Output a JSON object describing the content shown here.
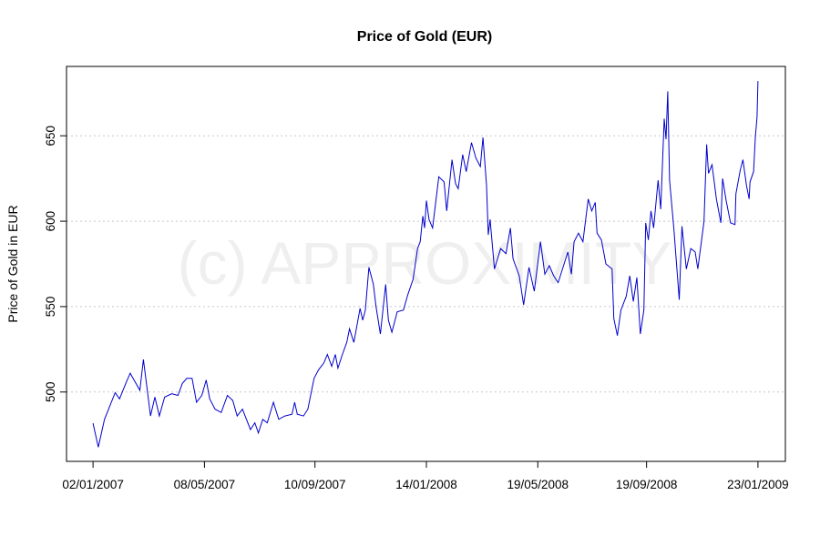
{
  "chart_data": {
    "type": "line",
    "title": "Price of Gold (EUR)",
    "xlabel": "",
    "ylabel": "Price of Gold in EUR",
    "watermark": "(c) APPROXIMITY",
    "xlim": [
      "2006-12-03",
      "2009-02-23"
    ],
    "ylim": [
      459.4,
      690.6
    ],
    "x_ticks": [
      "2007-01-02",
      "2007-05-08",
      "2007-09-10",
      "2008-01-14",
      "2008-05-19",
      "2008-09-19",
      "2009-01-23"
    ],
    "x_tick_labels": [
      "02/01/2007",
      "08/05/2007",
      "10/09/2007",
      "14/01/2008",
      "19/05/2008",
      "19/09/2008",
      "23/01/2009"
    ],
    "y_ticks": [
      500,
      550,
      600,
      650
    ],
    "y_tick_labels": [
      "500",
      "550",
      "600",
      "650"
    ],
    "grid": "horizontal dotted",
    "line_color": "#0000cc",
    "gridline_color": "#c8c8c8",
    "series": [
      {
        "x": [
          "2007-01-02",
          "2007-01-08",
          "2007-01-15",
          "2007-01-27",
          "2007-02-01",
          "2007-02-08",
          "2007-02-13",
          "2007-02-24",
          "2007-02-28",
          "2007-03-08",
          "2007-03-13",
          "2007-03-18",
          "2007-03-24",
          "2007-04-01",
          "2007-04-08",
          "2007-04-13",
          "2007-04-18",
          "2007-04-24",
          "2007-04-29",
          "2007-05-05",
          "2007-05-10",
          "2007-05-14",
          "2007-05-20",
          "2007-05-27",
          "2007-06-03",
          "2007-06-09",
          "2007-06-14",
          "2007-06-20",
          "2007-06-29",
          "2007-07-04",
          "2007-07-08",
          "2007-07-13",
          "2007-07-18",
          "2007-07-25",
          "2007-07-31",
          "2007-08-07",
          "2007-08-15",
          "2007-08-18",
          "2007-08-21",
          "2007-08-28",
          "2007-09-02",
          "2007-09-09",
          "2007-09-14",
          "2007-09-20",
          "2007-09-24",
          "2007-09-29",
          "2007-10-03",
          "2007-10-06",
          "2007-10-11",
          "2007-10-16",
          "2007-10-19",
          "2007-10-24",
          "2007-10-31",
          "2007-11-03",
          "2007-11-06",
          "2007-11-10",
          "2007-11-15",
          "2007-11-18",
          "2007-11-23",
          "2007-11-29",
          "2007-12-02",
          "2007-12-06",
          "2007-12-12",
          "2007-12-19",
          "2007-12-24",
          "2007-12-30",
          "2008-01-04",
          "2008-01-07",
          "2008-01-10",
          "2008-01-12",
          "2008-01-14",
          "2008-01-17",
          "2008-01-21",
          "2008-01-28",
          "2008-02-03",
          "2008-02-06",
          "2008-02-12",
          "2008-02-16",
          "2008-02-19",
          "2008-02-24",
          "2008-02-28",
          "2008-03-05",
          "2008-03-10",
          "2008-03-15",
          "2008-03-18",
          "2008-03-22",
          "2008-03-24",
          "2008-03-26",
          "2008-03-31",
          "2008-04-07",
          "2008-04-13",
          "2008-04-18",
          "2008-04-21",
          "2008-04-28",
          "2008-05-03",
          "2008-05-09",
          "2008-05-15",
          "2008-05-22",
          "2008-05-27",
          "2008-06-01",
          "2008-06-06",
          "2008-06-11",
          "2008-06-22",
          "2008-06-26",
          "2008-06-29",
          "2008-07-04",
          "2008-07-09",
          "2008-07-15",
          "2008-07-19",
          "2008-07-23",
          "2008-07-25",
          "2008-07-30",
          "2008-08-04",
          "2008-08-11",
          "2008-08-13",
          "2008-08-17",
          "2008-08-21",
          "2008-08-27",
          "2008-08-31",
          "2008-09-04",
          "2008-09-08",
          "2008-09-12",
          "2008-09-16",
          "2008-09-18",
          "2008-09-21",
          "2008-09-24",
          "2008-09-27",
          "2008-10-02",
          "2008-10-05",
          "2008-10-09",
          "2008-10-11",
          "2008-10-13",
          "2008-10-15",
          "2008-10-20",
          "2008-10-26",
          "2008-10-29",
          "2008-11-03",
          "2008-11-08",
          "2008-11-13",
          "2008-11-16",
          "2008-11-20",
          "2008-11-23",
          "2008-11-26",
          "2008-11-28",
          "2008-12-02",
          "2008-12-07",
          "2008-12-12",
          "2008-12-14",
          "2008-12-18",
          "2008-12-23",
          "2008-12-28",
          "2008-12-29",
          "2009-01-03",
          "2009-01-06",
          "2009-01-10",
          "2009-01-13",
          "2009-01-14",
          "2009-01-18",
          "2009-01-20",
          "2009-01-22",
          "2009-01-23"
        ],
        "y": [
          481.7,
          467.7,
          484,
          499.6,
          496,
          505,
          511,
          501,
          519,
          486,
          497,
          486,
          497,
          499,
          498,
          505,
          508,
          508,
          494,
          498,
          507,
          496,
          490,
          488,
          498,
          495,
          486,
          490,
          478,
          482,
          476,
          484,
          482,
          494,
          484,
          486,
          487,
          494,
          487,
          486,
          490,
          508,
          513,
          517,
          522,
          515,
          522,
          514,
          522,
          529,
          537,
          529,
          549,
          542,
          548,
          573,
          563,
          550,
          534,
          563,
          542,
          535,
          547,
          548,
          557,
          566,
          584,
          588,
          603,
          596,
          612,
          601,
          596,
          626,
          623,
          606,
          636,
          622,
          619,
          639,
          629,
          646,
          637,
          632,
          649,
          621,
          592,
          601,
          572,
          584,
          581,
          596,
          578,
          568,
          551,
          573,
          559,
          588,
          569,
          574,
          568,
          564,
          582,
          569,
          588,
          593,
          588,
          613,
          606,
          611,
          593,
          589,
          575,
          572,
          543,
          533,
          548,
          556,
          568,
          553,
          567,
          534,
          548,
          599,
          589,
          606,
          596,
          624,
          607,
          660,
          648,
          676,
          624,
          595,
          554,
          597,
          572,
          584,
          582,
          572,
          588,
          600,
          645,
          628,
          633,
          613,
          599,
          625,
          612,
          599,
          598,
          616,
          630,
          636,
          621,
          613,
          623,
          629,
          649,
          661,
          682
        ]
      }
    ]
  }
}
